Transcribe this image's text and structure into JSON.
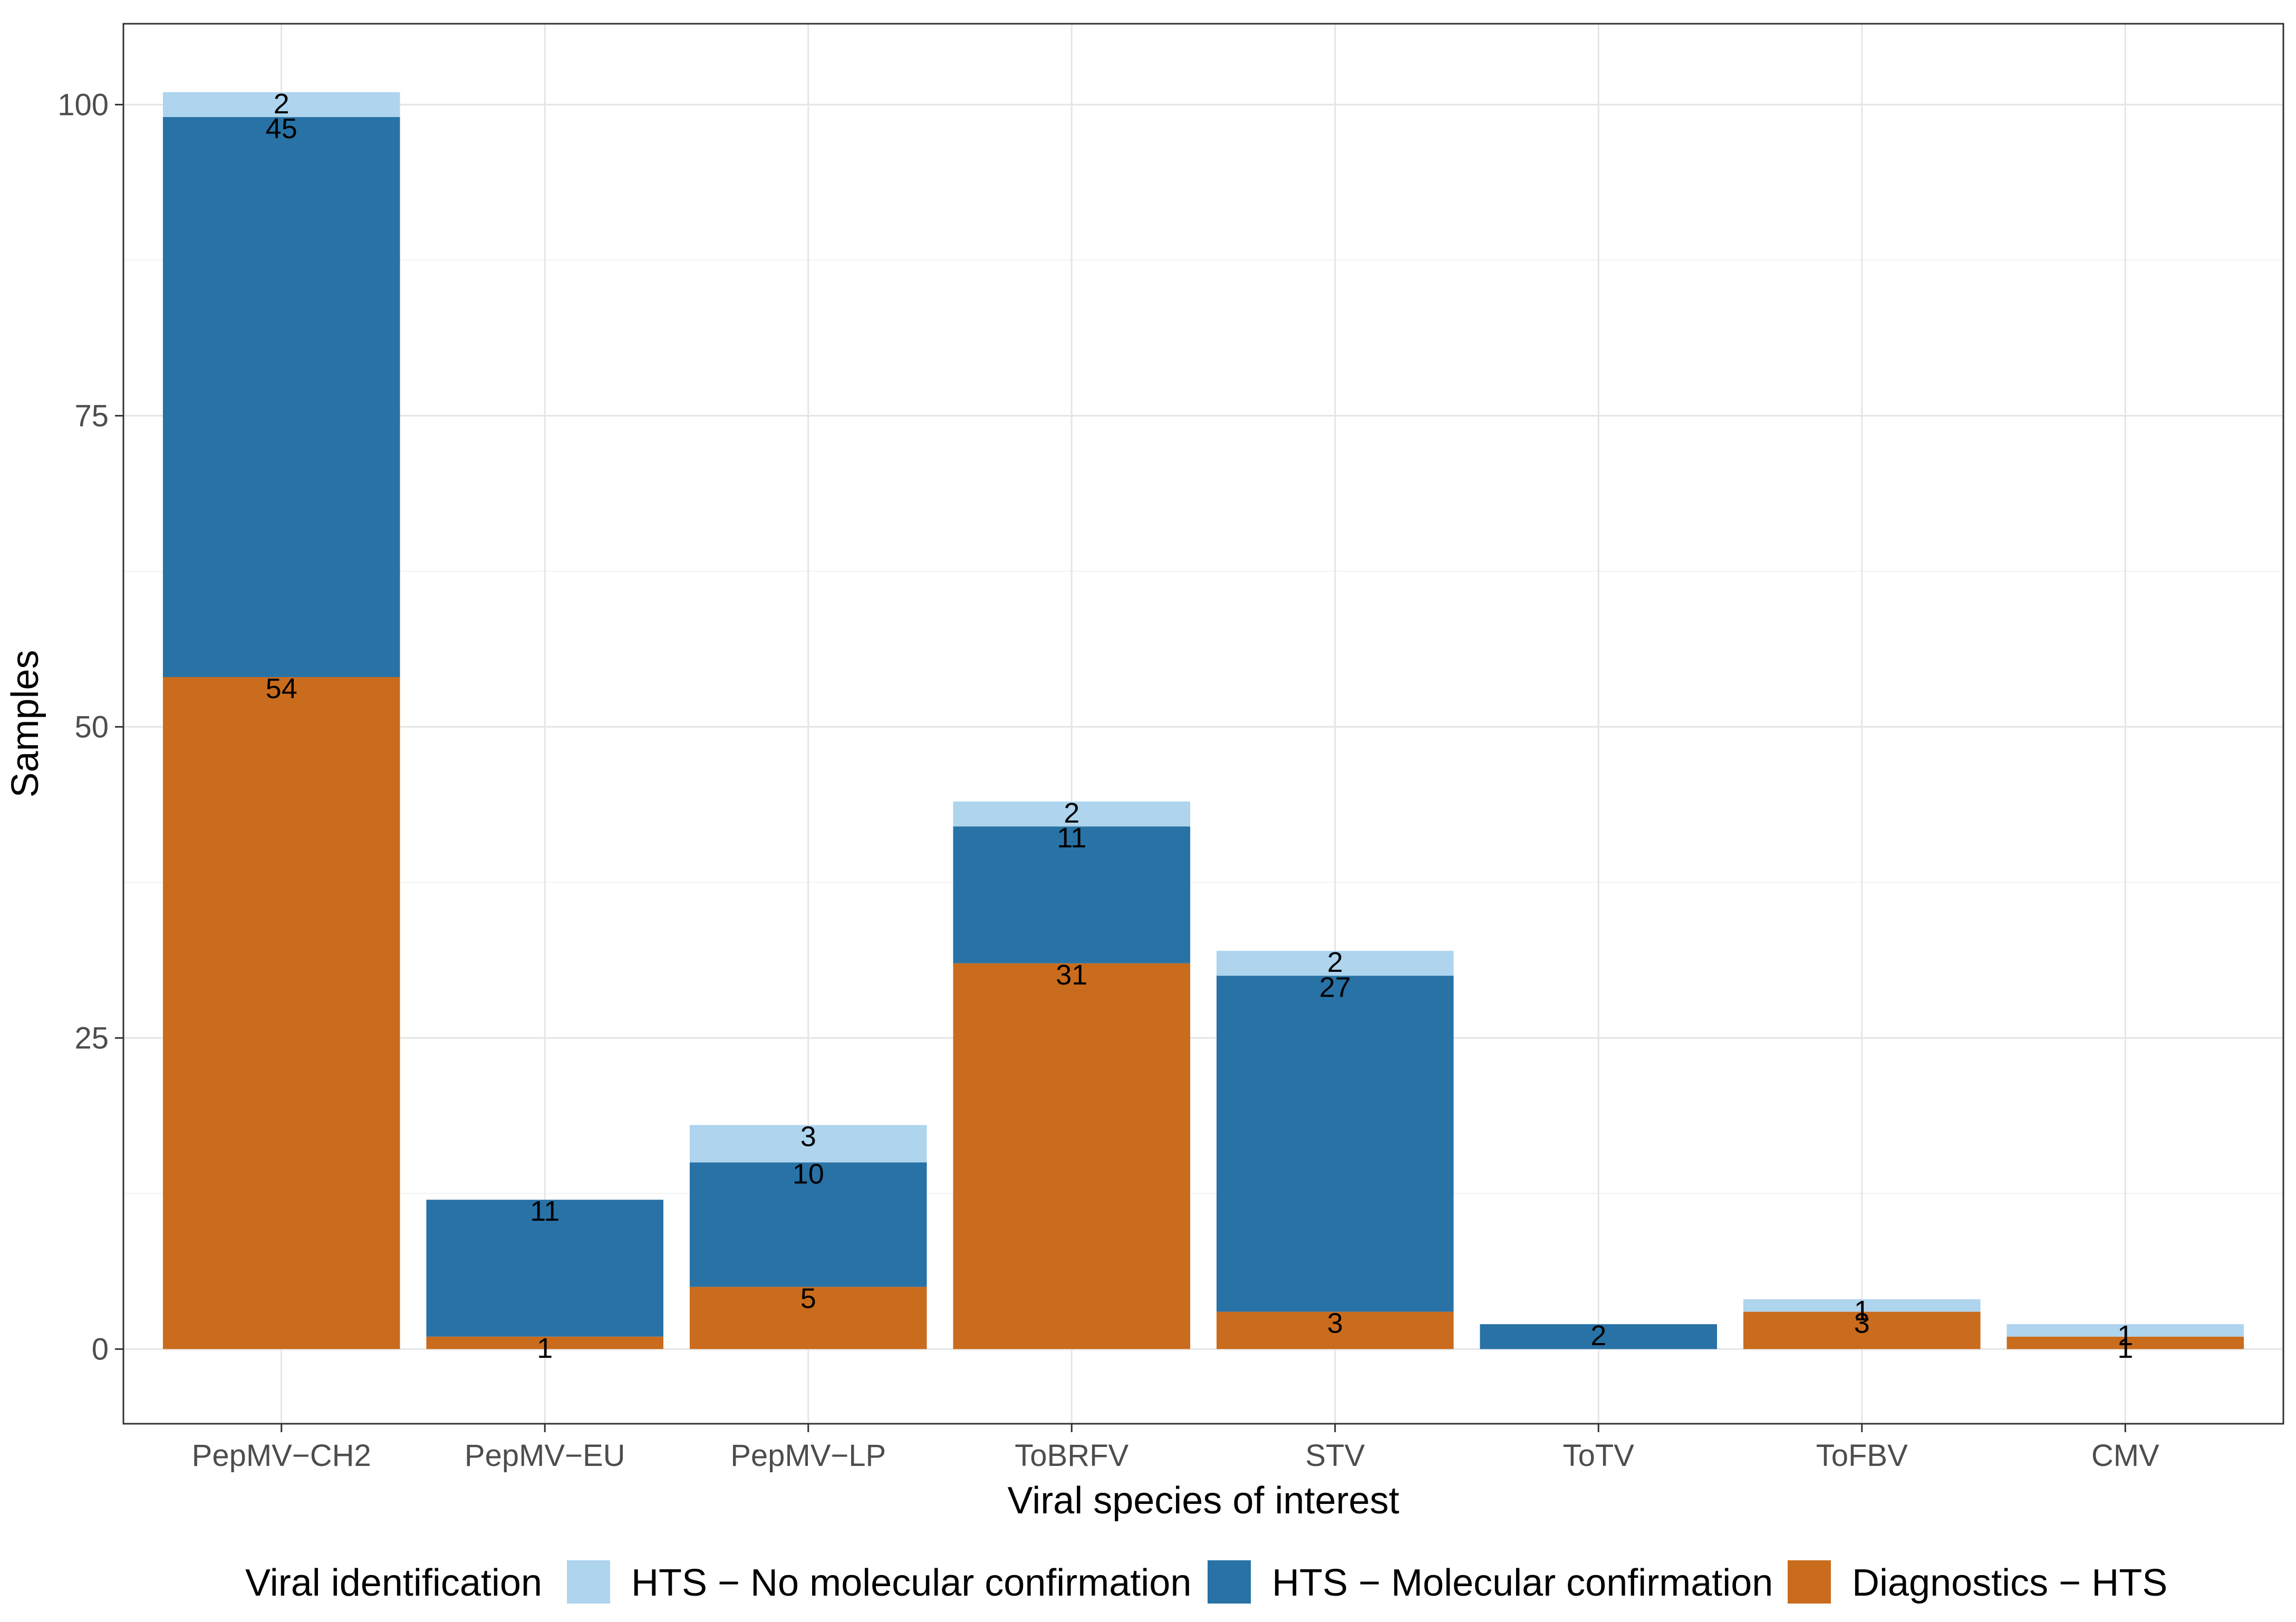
{
  "chart_data": {
    "type": "bar",
    "stacked": true,
    "title": "",
    "xlabel": "Viral species of interest",
    "ylabel": "Samples",
    "ylim": [
      -6,
      106.5
    ],
    "yticks": [
      0,
      25,
      50,
      75,
      100
    ],
    "grid": true,
    "legend_position": "bottom",
    "legend_title": "Viral identification",
    "categories": [
      "PepMV−CH2",
      "PepMV−EU",
      "PepMV−LP",
      "ToBRFV",
      "STV",
      "ToTV",
      "ToFBV",
      "CMV"
    ],
    "series": [
      {
        "name": "Diagnostics − HTS",
        "color": "#C96C1E",
        "values": [
          54,
          1,
          5,
          31,
          3,
          0,
          3,
          1
        ]
      },
      {
        "name": "HTS − Molecular confirmation",
        "color": "#2872A6",
        "values": [
          45,
          11,
          10,
          11,
          27,
          2,
          0,
          0
        ]
      },
      {
        "name": "HTS − No molecular confirmation",
        "color": "#AED4EE",
        "values": [
          2,
          0,
          3,
          2,
          2,
          0,
          1,
          1
        ]
      }
    ],
    "legend_order": [
      "HTS − No molecular confirmation",
      "HTS − Molecular confirmation",
      "Diagnostics − HTS"
    ]
  }
}
